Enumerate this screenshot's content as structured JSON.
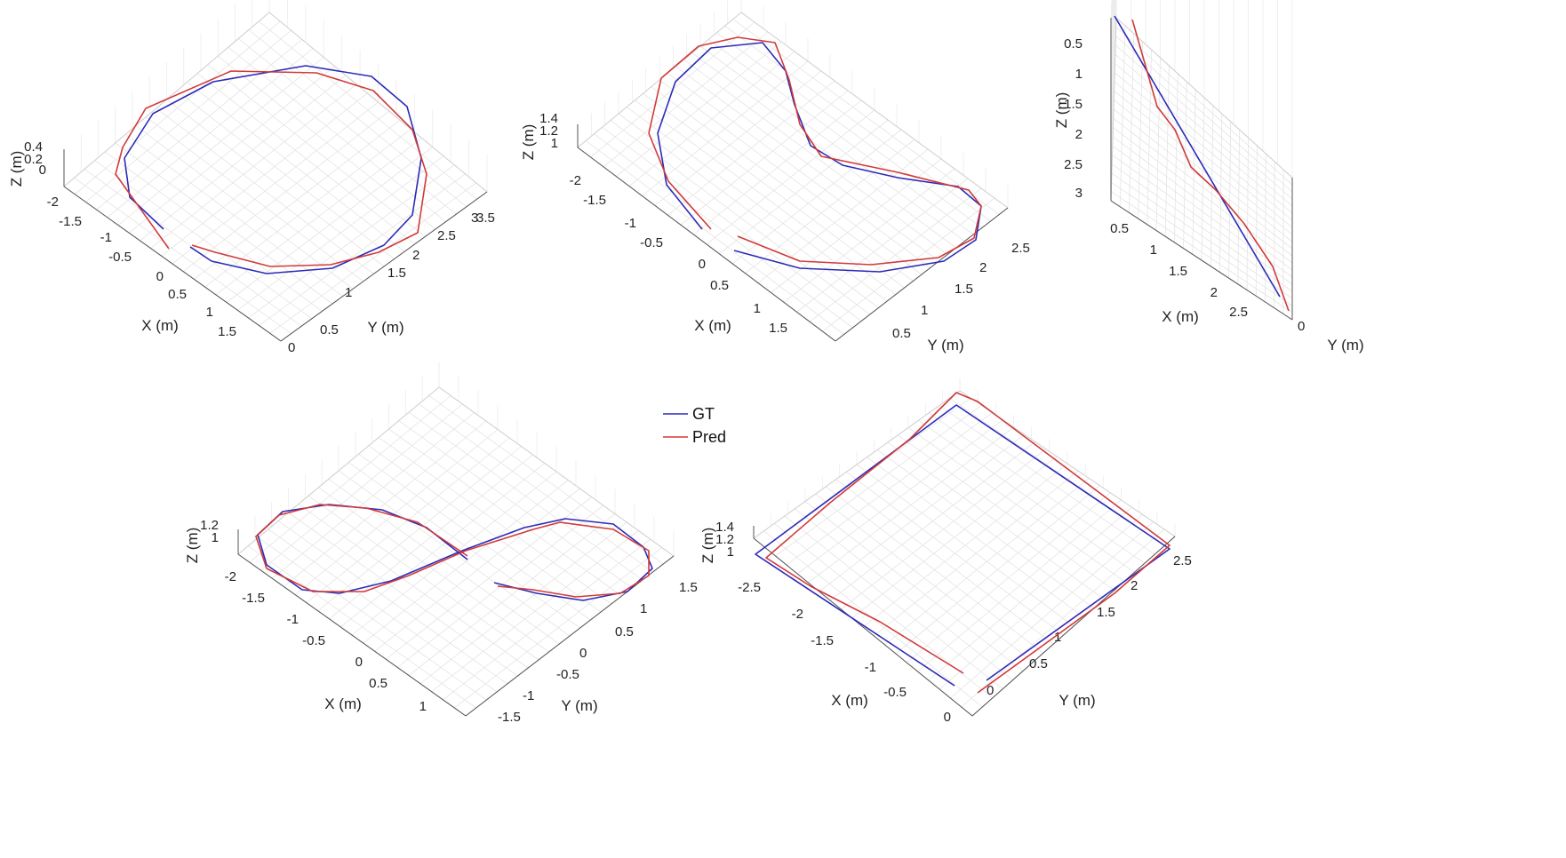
{
  "legend": [
    {
      "label": "GT",
      "color": "#2b2bb8"
    },
    {
      "label": "Pred",
      "color": "#d23a3a"
    }
  ],
  "chart_data": [
    {
      "type": "line3d",
      "xlabel": "X (m)",
      "ylabel": "Y (m)",
      "zlabel": "Z (m)",
      "xticks": [
        "-2",
        "-1.5",
        "-1",
        "-0.5",
        "0",
        "0.5",
        "1",
        "1.5"
      ],
      "yticks": [
        "0",
        "0.5",
        "1",
        "1.5",
        "2",
        "2.5",
        "3",
        "3.5"
      ],
      "zticks": [
        "0",
        "0.2",
        "0.4"
      ],
      "trajectory": "circle",
      "series": [
        {
          "name": "GT",
          "x": [
            -1.2,
            -1.7,
            -1.9,
            -1.7,
            -1.1,
            -0.3,
            0.5,
            1.1,
            1.4,
            1.4,
            1.1,
            0.5,
            -0.3,
            -0.8
          ],
          "y": [
            0.3,
            0.8,
            1.5,
            2.2,
            2.9,
            3.3,
            3.4,
            3.1,
            2.5,
            1.8,
            1.0,
            0.4,
            0.0,
            -0.1
          ]
        },
        {
          "name": "Pred",
          "x": [
            -1.3,
            -1.8,
            -2.0,
            -1.8,
            -1.2,
            -0.4,
            0.4,
            1.0,
            1.35,
            1.45,
            1.2,
            0.55,
            -0.2,
            -0.75
          ],
          "y": [
            0.25,
            0.75,
            1.45,
            2.25,
            2.95,
            3.25,
            3.4,
            3.2,
            2.6,
            1.85,
            1.1,
            0.5,
            0.1,
            0.0
          ]
        }
      ]
    },
    {
      "type": "line3d",
      "xlabel": "X (m)",
      "ylabel": "Y (m)",
      "zlabel": "Z (m)",
      "xticks": [
        "-2",
        "-1.5",
        "-1",
        "-0.5",
        "0",
        "0.5",
        "1",
        "1.5"
      ],
      "yticks": [
        "0.5",
        "1",
        "1.5",
        "2",
        "2.5"
      ],
      "zticks": [
        "1",
        "1.2",
        "1.4"
      ],
      "trajectory": "kidney",
      "series": [
        {
          "name": "GT",
          "x": [
            -0.6,
            -1.2,
            -1.7,
            -1.9,
            -1.7,
            -1.3,
            -0.9,
            -0.4,
            0.1,
            0.5,
            0.9,
            1.2,
            1.3,
            1.0,
            0.4,
            -0.2
          ],
          "y": [
            0.6,
            0.8,
            1.2,
            1.7,
            2.1,
            2.2,
            1.9,
            1.7,
            1.9,
            2.3,
            2.6,
            2.6,
            2.3,
            1.8,
            1.2,
            0.8
          ]
        },
        {
          "name": "Pred",
          "x": [
            -0.7,
            -1.3,
            -1.8,
            -2.0,
            -1.8,
            -1.4,
            -1.0,
            -0.5,
            0.0,
            0.45,
            0.85,
            1.15,
            1.25,
            0.95,
            0.35,
            -0.3
          ],
          "y": [
            0.55,
            0.75,
            1.15,
            1.7,
            2.15,
            2.3,
            2.0,
            1.75,
            1.95,
            2.35,
            2.65,
            2.6,
            2.25,
            1.75,
            1.1,
            0.75
          ]
        }
      ]
    },
    {
      "type": "line3d",
      "xlabel": "X (m)",
      "ylabel": "Y (m)",
      "zlabel": "Z (m)",
      "xticks": [
        "0.5",
        "1",
        "1.5",
        "2",
        "2.5"
      ],
      "yticks": [
        "0"
      ],
      "zticks": [
        "0.5",
        "1",
        "1.5",
        "2",
        "2.5",
        "3"
      ],
      "trajectory": "line",
      "series": [
        {
          "name": "GT",
          "x": [
            0.1,
            2.8
          ],
          "z": [
            3.4,
            0.5
          ]
        },
        {
          "name": "Pred",
          "x": [
            0.2,
            0.6,
            1.0,
            1.3,
            1.7,
            2.1,
            2.6,
            2.85
          ],
          "z": [
            3.4,
            2.5,
            1.9,
            1.5,
            1.1,
            0.9,
            0.6,
            0.35
          ]
        }
      ]
    },
    {
      "type": "line3d",
      "xlabel": "X (m)",
      "ylabel": "Y (m)",
      "zlabel": "Z (m)",
      "xticks": [
        "-2",
        "-1.5",
        "-1",
        "-0.5",
        "0",
        "0.5",
        "1"
      ],
      "yticks": [
        "-1.5",
        "-1",
        "-0.5",
        "0",
        "0.5",
        "1",
        "1.5"
      ],
      "zticks": [
        "1",
        "1.2"
      ],
      "trajectory": "figure-eight",
      "series": [
        {
          "name": "GT",
          "x": [
            -0.4,
            -1.0,
            -1.6,
            -2.0,
            -1.9,
            -1.4,
            -0.6,
            0.1,
            0.7,
            1.0,
            0.9,
            0.4,
            -0.3
          ],
          "y": [
            0.0,
            -0.6,
            -0.9,
            -0.7,
            -0.2,
            0.0,
            0.3,
            0.8,
            1.2,
            1.3,
            0.9,
            0.3,
            -0.2
          ]
        },
        {
          "name": "Pred",
          "x": [
            -0.5,
            -1.05,
            -1.65,
            -2.05,
            -1.95,
            -1.45,
            -0.7,
            0.0,
            0.65,
            0.95,
            0.85,
            0.35,
            -0.35
          ],
          "y": [
            0.05,
            -0.55,
            -0.85,
            -0.65,
            -0.25,
            0.05,
            0.35,
            0.8,
            1.15,
            1.25,
            0.85,
            0.25,
            -0.25
          ]
        }
      ]
    },
    {
      "type": "line3d",
      "xlabel": "X (m)",
      "ylabel": "Y (m)",
      "zlabel": "Z (m)",
      "xticks": [
        "-2.5",
        "-2",
        "-1.5",
        "-1",
        "-0.5",
        "0"
      ],
      "yticks": [
        "0",
        "0.5",
        "1",
        "1.5",
        "2",
        "2.5"
      ],
      "zticks": [
        "1",
        "1.2",
        "1.4"
      ],
      "trajectory": "square",
      "series": [
        {
          "name": "GT",
          "x": [
            0.0,
            -2.8,
            -2.8,
            0.0,
            0.0
          ],
          "y": [
            0.1,
            0.1,
            2.8,
            2.8,
            0.1
          ]
        },
        {
          "name": "Pred",
          "x": [
            0.0,
            -1.4,
            -2.7,
            -2.8,
            -1.4,
            0.0,
            0.0
          ],
          "y": [
            0.0,
            0.3,
            0.2,
            2.8,
            2.9,
            2.8,
            0.0
          ]
        }
      ]
    }
  ]
}
